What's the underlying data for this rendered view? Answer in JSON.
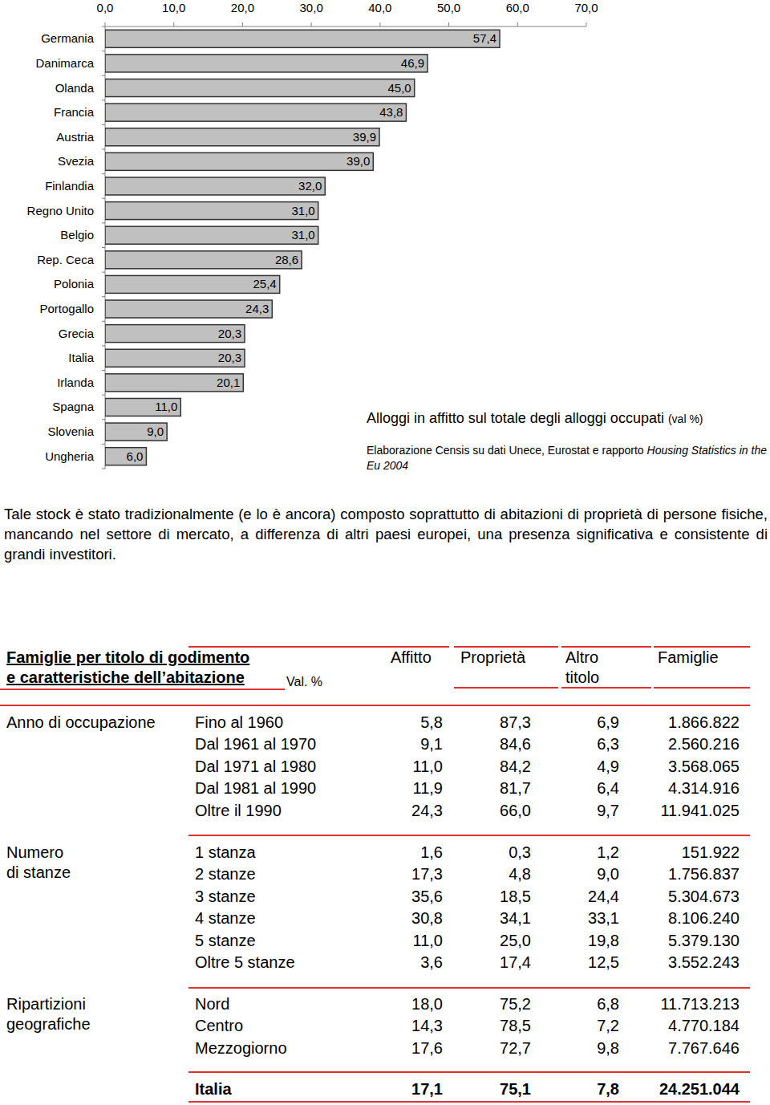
{
  "chart_data": {
    "type": "bar",
    "orientation": "horizontal",
    "title": "Alloggi in affitto sul totale degli alloggi occupati",
    "annotations": [
      "(val %)"
    ],
    "subtitle": "Elaborazione Censis su dati Unece, Eurostat e rapporto",
    "source": "Housing Statistics in the Eu 2004",
    "categories": [
      "Germania",
      "Danimarca",
      "Olanda",
      "Francia",
      "Austria",
      "Svezia",
      "Finlandia",
      "Regno Unito",
      "Belgio",
      "Rep. Ceca",
      "Polonia",
      "Portogallo",
      "Grecia",
      "Italia",
      "Irlanda",
      "Spagna",
      "Slovenia",
      "Ungheria"
    ],
    "values": [
      57.4,
      46.9,
      45.0,
      43.8,
      39.9,
      39.0,
      32.0,
      31.0,
      31.0,
      28.6,
      25.4,
      24.3,
      20.3,
      20.3,
      20.1,
      11.0,
      9.0,
      6.0
    ],
    "value_labels": [
      "57,4",
      "46,9",
      "45,0",
      "43,8",
      "39,9",
      "39,0",
      "32,0",
      "31,0",
      "31,0",
      "28,6",
      "25,4",
      "24,3",
      "20,3",
      "20,3",
      "20,1",
      "11,0",
      "9,0",
      "6,0"
    ],
    "color": "#c0c0c0",
    "data_labels": true,
    "xlim": [
      0,
      70
    ],
    "xticks": [
      {
        "value": 0,
        "label": "0,0"
      },
      {
        "value": 10,
        "label": "10,0"
      },
      {
        "value": 20,
        "label": "20,0"
      },
      {
        "value": 30,
        "label": "30,0"
      },
      {
        "value": 40,
        "label": "40,0"
      },
      {
        "value": 50,
        "label": "50,0"
      },
      {
        "value": 60,
        "label": "60,0"
      },
      {
        "value": 70,
        "label": "70,0"
      }
    ],
    "grid": false
  },
  "paragraph": "Tale stock è stato tradizionalmente (e lo è ancora) composto soprattutto di abitazioni di proprietà di persone fisiche, mancando nel settore di mercato, a differenza di altri paesi europei, una presenza significativa e consistente di grandi investitori.",
  "table": {
    "title_lines": [
      "Famiglie per titolo di godimento",
      "e caratteristiche dell’abitazione"
    ],
    "unit": "Val. %",
    "columns": [
      [
        "Affitto"
      ],
      [
        "Proprietà"
      ],
      [
        "Altro",
        "titolo"
      ],
      [
        "Famiglie"
      ]
    ],
    "sections": [
      {
        "label": [
          "Anno di occupazione"
        ],
        "rows": [
          {
            "label": "Fino al 1960",
            "values": [
              "5,8",
              "87,3",
              "6,9",
              "1.866.822"
            ]
          },
          {
            "label": "Dal 1961 al 1970",
            "values": [
              "9,1",
              "84,6",
              "6,3",
              "2.560.216"
            ]
          },
          {
            "label": "Dal 1971 al 1980",
            "values": [
              "11,0",
              "84,2",
              "4,9",
              "3.568.065"
            ]
          },
          {
            "label": "Dal 1981 al 1990",
            "values": [
              "11,9",
              "81,7",
              "6,4",
              "4.314.916"
            ]
          },
          {
            "label": "Oltre il 1990",
            "values": [
              "24,3",
              "66,0",
              "9,7",
              "11.941.025"
            ]
          }
        ]
      },
      {
        "label": [
          "Numero",
          "di stanze"
        ],
        "rows": [
          {
            "label": "1 stanza",
            "values": [
              "1,6",
              "0,3",
              "1,2",
              "151.922"
            ]
          },
          {
            "label": "2 stanze",
            "values": [
              "17,3",
              "4,8",
              "9,0",
              "1.756.837"
            ]
          },
          {
            "label": "3 stanze",
            "values": [
              "35,6",
              "18,5",
              "24,4",
              "5.304.673"
            ]
          },
          {
            "label": "4 stanze",
            "values": [
              "30,8",
              "34,1",
              "33,1",
              "8.106.240"
            ]
          },
          {
            "label": "5 stanze",
            "values": [
              "11,0",
              "25,0",
              "19,8",
              "5.379.130"
            ]
          },
          {
            "label": "Oltre 5 stanze",
            "values": [
              "3,6",
              "17,4",
              "12,5",
              "3.552.243"
            ]
          }
        ]
      },
      {
        "label": [
          "Ripartizioni",
          "geografiche"
        ],
        "rows": [
          {
            "label": "Nord",
            "values": [
              "18,0",
              "75,2",
              "6,8",
              "11.713.213"
            ]
          },
          {
            "label": "Centro",
            "values": [
              "14,3",
              "78,5",
              "7,2",
              "4.770.184"
            ]
          },
          {
            "label": "Mezzogiorno",
            "values": [
              "17,6",
              "72,7",
              "9,8",
              "7.767.646"
            ]
          }
        ]
      }
    ],
    "total": {
      "label": "Italia",
      "values": [
        "17,1",
        "75,1",
        "7,8",
        "24.251.044"
      ]
    }
  }
}
